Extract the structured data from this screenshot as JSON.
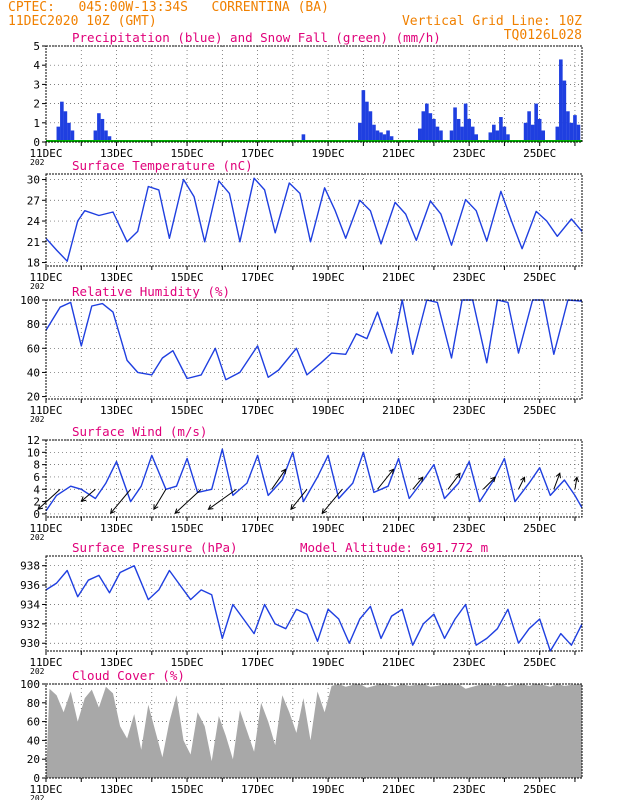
{
  "header": {
    "line1": "CPTEC:   045:00W-13:34S   CORRENTINA (BA)",
    "line2": "11DEC2020 10Z (GMT)",
    "grid_note": "Vertical Grid Line: 10Z",
    "run_id": "TQ0126L028",
    "model_altitude": "Model Altitude: 691.772 m"
  },
  "x_axis": {
    "tick_labels": [
      "11DEC",
      "13DEC",
      "15DEC",
      "17DEC",
      "19DEC",
      "21DEC",
      "23DEC",
      "25DEC"
    ],
    "year_fragment": "202",
    "day_range": [
      0,
      15.2
    ]
  },
  "colors": {
    "title": "#e0007a",
    "header": "#f08000",
    "series": "#1f3fe0",
    "snow": "#00b000",
    "cloud": "#a8a8a8"
  },
  "chart_data": [
    {
      "type": "bar",
      "title": "Precipitation (blue) and Snow Fall (green) (mm/h)",
      "ylim": [
        0,
        5
      ],
      "yticks": [
        0,
        1,
        2,
        3,
        4,
        5
      ],
      "series": [
        {
          "name": "Precipitation",
          "x": [
            0.35,
            0.45,
            0.55,
            0.65,
            0.75,
            1.4,
            1.5,
            1.6,
            1.7,
            1.8,
            7.3,
            8.9,
            9.0,
            9.1,
            9.2,
            9.3,
            9.4,
            9.5,
            9.6,
            9.7,
            9.8,
            10.6,
            10.7,
            10.8,
            10.9,
            11.0,
            11.1,
            11.2,
            11.5,
            11.6,
            11.7,
            11.8,
            11.9,
            12.0,
            12.1,
            12.2,
            12.6,
            12.7,
            12.8,
            12.9,
            13.0,
            13.1,
            13.6,
            13.7,
            13.8,
            13.9,
            14.0,
            14.1,
            14.5,
            14.6,
            14.7,
            14.8,
            14.9,
            15.0,
            15.1
          ],
          "values": [
            0.8,
            2.1,
            1.6,
            1.0,
            0.6,
            0.6,
            1.5,
            1.2,
            0.6,
            0.3,
            0.4,
            1.0,
            2.7,
            2.1,
            1.6,
            0.9,
            0.6,
            0.5,
            0.4,
            0.6,
            0.3,
            0.7,
            1.6,
            2.0,
            1.5,
            1.2,
            0.8,
            0.6,
            0.6,
            1.8,
            1.2,
            0.8,
            2.0,
            1.2,
            0.8,
            0.4,
            0.5,
            0.9,
            0.6,
            1.3,
            0.8,
            0.4,
            1.0,
            1.6,
            0.9,
            2.0,
            1.2,
            0.6,
            0.8,
            4.3,
            3.2,
            1.6,
            1.0,
            1.4,
            0.9
          ]
        }
      ]
    },
    {
      "type": "line",
      "title": "Surface Temperature (nC)",
      "ylim": [
        17.5,
        30.8
      ],
      "yticks": [
        18,
        21,
        24,
        27,
        30
      ],
      "series": [
        {
          "name": "Temperature",
          "x": [
            0,
            0.3,
            0.6,
            0.9,
            1.1,
            1.5,
            1.9,
            2.3,
            2.6,
            2.9,
            3.2,
            3.5,
            3.9,
            4.2,
            4.5,
            4.9,
            5.2,
            5.5,
            5.9,
            6.2,
            6.5,
            6.9,
            7.2,
            7.5,
            7.9,
            8.2,
            8.5,
            8.9,
            9.2,
            9.5,
            9.9,
            10.2,
            10.5,
            10.9,
            11.2,
            11.5,
            11.9,
            12.2,
            12.5,
            12.9,
            13.2,
            13.5,
            13.9,
            14.2,
            14.5,
            14.9,
            15.2
          ],
          "values": [
            21.5,
            19.8,
            18.2,
            24.0,
            25.5,
            24.8,
            25.3,
            21.0,
            22.5,
            29.0,
            28.5,
            21.5,
            30.0,
            27.5,
            21.0,
            29.8,
            28.0,
            21.0,
            30.2,
            28.5,
            22.3,
            29.5,
            28.0,
            21.0,
            28.8,
            25.5,
            21.5,
            27.0,
            25.5,
            20.7,
            26.7,
            25.0,
            21.2,
            26.9,
            25.0,
            20.5,
            27.1,
            25.5,
            21.1,
            28.3,
            24.0,
            20.0,
            25.4,
            24.0,
            21.8,
            24.3,
            22.5
          ]
        }
      ]
    },
    {
      "type": "line",
      "title": "Relative Humidity (%)",
      "ylim": [
        18,
        100
      ],
      "yticks": [
        20,
        40,
        60,
        80,
        100
      ],
      "series": [
        {
          "name": "Relative Humidity",
          "x": [
            0,
            0.4,
            0.7,
            1.0,
            1.3,
            1.6,
            1.9,
            2.3,
            2.6,
            3.0,
            3.3,
            3.6,
            4.0,
            4.4,
            4.8,
            5.1,
            5.5,
            6.0,
            6.3,
            6.6,
            7.1,
            7.4,
            7.8,
            8.1,
            8.5,
            8.8,
            9.1,
            9.4,
            9.8,
            10.1,
            10.4,
            10.8,
            11.1,
            11.5,
            11.8,
            12.1,
            12.5,
            12.8,
            13.1,
            13.4,
            13.8,
            14.1,
            14.4,
            14.8,
            15.2
          ],
          "values": [
            75,
            94,
            98,
            62,
            95,
            97,
            90,
            50,
            40,
            38,
            52,
            58,
            35,
            38,
            60,
            34,
            40,
            62,
            36,
            42,
            60,
            38,
            48,
            56,
            55,
            72,
            68,
            90,
            56,
            100,
            55,
            100,
            98,
            52,
            100,
            100,
            48,
            100,
            98,
            56,
            100,
            100,
            55,
            100,
            99
          ]
        }
      ]
    },
    {
      "type": "line",
      "title": "Surface Wind (m/s)",
      "ylim": [
        -0.5,
        12
      ],
      "yticks": [
        0,
        2,
        4,
        6,
        8,
        10,
        12
      ],
      "series": [
        {
          "name": "Wind Speed",
          "x": [
            0,
            0.3,
            0.7,
            1.0,
            1.4,
            1.7,
            2.0,
            2.4,
            2.7,
            3.0,
            3.4,
            3.7,
            4.0,
            4.3,
            4.7,
            5.0,
            5.3,
            5.7,
            6.0,
            6.3,
            6.7,
            7.0,
            7.3,
            7.7,
            8.0,
            8.3,
            8.7,
            9.0,
            9.3,
            9.7,
            10.0,
            10.3,
            10.7,
            11.0,
            11.3,
            11.7,
            12.0,
            12.3,
            12.7,
            13.0,
            13.3,
            13.7,
            14.0,
            14.3,
            14.7,
            15.0,
            15.2
          ],
          "values": [
            0.5,
            3.0,
            4.5,
            4.0,
            2.5,
            5.0,
            8.5,
            2.0,
            4.5,
            9.5,
            4.0,
            4.5,
            9.0,
            3.5,
            4.0,
            10.5,
            3.0,
            5.0,
            9.5,
            3.0,
            5.5,
            10.0,
            2.0,
            6.0,
            9.5,
            2.5,
            5.0,
            10.0,
            3.5,
            4.5,
            9.0,
            2.5,
            5.5,
            8.0,
            2.5,
            5.0,
            8.5,
            2.0,
            5.5,
            9.0,
            2.0,
            5.0,
            7.5,
            3.0,
            5.5,
            3.0,
            1.0
          ]
        }
      ],
      "wind_barbs": {
        "x": [
          0.4,
          1.4,
          2.4,
          3.4,
          4.4,
          5.4,
          6.4,
          7.4,
          8.4,
          9.4,
          10.4,
          11.4,
          12.4,
          13.4,
          14.4,
          15.0
        ],
        "dx": [
          -0.55,
          -0.35,
          -0.5,
          -0.3,
          -0.65,
          -0.7,
          0.35,
          -0.4,
          -0.5,
          0.4,
          0.25,
          0.3,
          0.3,
          0.15,
          0.15,
          0.05
        ],
        "dy": [
          -0.5,
          -0.3,
          -0.6,
          -0.5,
          -0.6,
          -0.5,
          0.5,
          -0.5,
          -0.6,
          0.5,
          0.3,
          0.4,
          0.3,
          0.3,
          0.4,
          0.3
        ]
      }
    },
    {
      "type": "line",
      "title": "Surface Pressure (hPa)",
      "ylim": [
        929.2,
        939
      ],
      "yticks": [
        930,
        932,
        934,
        936,
        938
      ],
      "series": [
        {
          "name": "Pressure",
          "x": [
            0,
            0.3,
            0.6,
            0.9,
            1.2,
            1.5,
            1.8,
            2.1,
            2.5,
            2.9,
            3.2,
            3.5,
            3.8,
            4.1,
            4.4,
            4.7,
            5.0,
            5.3,
            5.6,
            5.9,
            6.2,
            6.5,
            6.8,
            7.1,
            7.4,
            7.7,
            8.0,
            8.3,
            8.6,
            8.9,
            9.2,
            9.5,
            9.8,
            10.1,
            10.4,
            10.7,
            11.0,
            11.3,
            11.6,
            11.9,
            12.2,
            12.5,
            12.8,
            13.1,
            13.4,
            13.7,
            14.0,
            14.3,
            14.6,
            14.9,
            15.2
          ],
          "values": [
            935.5,
            936.2,
            937.5,
            934.8,
            936.5,
            937.0,
            935.2,
            937.3,
            938.0,
            934.5,
            935.5,
            937.5,
            936.0,
            934.5,
            935.5,
            935.0,
            930.5,
            934.0,
            932.5,
            931.0,
            934.0,
            932.0,
            931.5,
            933.5,
            933.0,
            930.2,
            933.5,
            932.5,
            930.0,
            932.5,
            933.8,
            930.5,
            932.8,
            933.5,
            929.8,
            932.0,
            933.0,
            930.5,
            932.5,
            934.0,
            929.8,
            930.5,
            931.5,
            933.5,
            930.0,
            931.5,
            932.5,
            929.2,
            931.0,
            929.8,
            932.0
          ]
        }
      ]
    },
    {
      "type": "area",
      "title": "Cloud Cover (%)",
      "ylim": [
        0,
        100
      ],
      "yticks": [
        0,
        20,
        40,
        60,
        80,
        100
      ],
      "series": [
        {
          "name": "Cloud Cover",
          "x": [
            0.1,
            0.3,
            0.5,
            0.7,
            0.9,
            1.1,
            1.3,
            1.5,
            1.7,
            1.9,
            2.1,
            2.3,
            2.5,
            2.7,
            2.9,
            3.1,
            3.3,
            3.5,
            3.7,
            3.9,
            4.1,
            4.3,
            4.5,
            4.7,
            4.9,
            5.1,
            5.3,
            5.5,
            5.7,
            5.9,
            6.1,
            6.3,
            6.5,
            6.7,
            6.9,
            7.1,
            7.3,
            7.5,
            7.7,
            7.9,
            8.1,
            8.3,
            8.5,
            8.7,
            8.9,
            9.1,
            9.3,
            9.5,
            9.7,
            9.9,
            10.1,
            10.3,
            10.5,
            10.7,
            10.9,
            11.1,
            11.3,
            11.5,
            11.7,
            11.9,
            12.1,
            12.3,
            12.5,
            12.7,
            12.9,
            13.1,
            13.3,
            13.5,
            13.7,
            13.9,
            14.1,
            14.3,
            14.5,
            14.7,
            14.9,
            15.1
          ],
          "values": [
            95,
            88,
            70,
            92,
            60,
            85,
            94,
            75,
            97,
            90,
            55,
            42,
            68,
            30,
            78,
            50,
            22,
            60,
            88,
            40,
            25,
            70,
            55,
            18,
            66,
            45,
            20,
            72,
            50,
            28,
            80,
            60,
            35,
            88,
            70,
            48,
            85,
            40,
            92,
            70,
            98,
            100,
            97,
            99,
            100,
            96,
            98,
            100,
            99,
            97,
            100,
            98,
            99,
            100,
            97,
            98,
            100,
            99,
            100,
            95,
            97,
            99,
            100,
            98,
            100,
            97,
            99,
            100,
            98,
            100,
            99,
            97,
            100,
            98,
            99,
            100
          ]
        }
      ]
    }
  ]
}
